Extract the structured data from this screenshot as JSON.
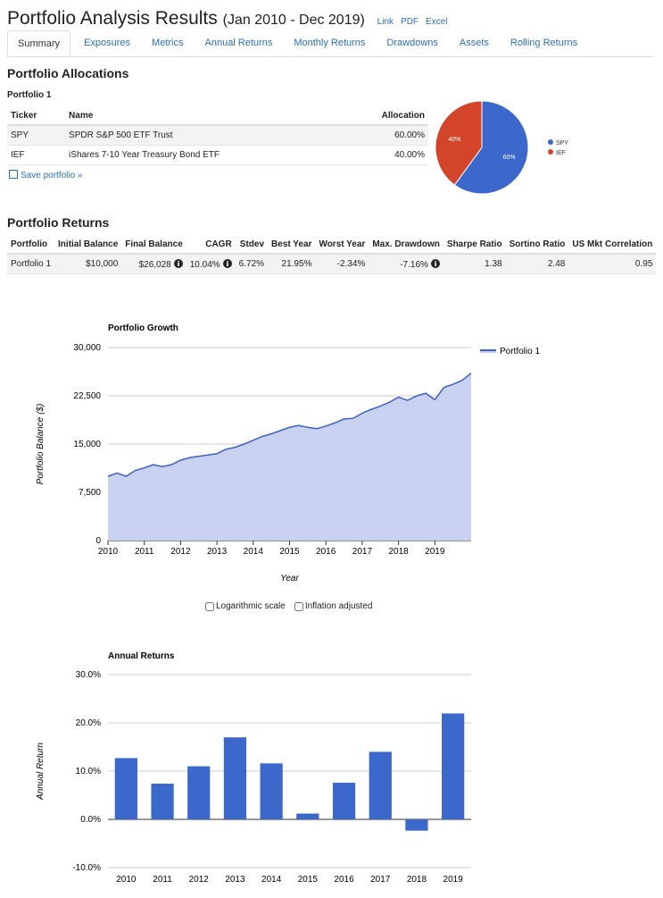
{
  "header": {
    "title": "Portfolio Analysis Results",
    "period": "(Jan 2010 - Dec 2019)",
    "links": [
      "Link",
      "PDF",
      "Excel"
    ]
  },
  "tabs": [
    "Summary",
    "Exposures",
    "Metrics",
    "Annual Returns",
    "Monthly Returns",
    "Drawdowns",
    "Assets",
    "Rolling Returns"
  ],
  "allocations": {
    "title": "Portfolio Allocations",
    "portfolio": "Portfolio 1",
    "columns": [
      "Ticker",
      "Name",
      "Allocation"
    ],
    "rows": [
      [
        "SPY",
        "SPDR S&P 500 ETF Trust",
        "60.00%"
      ],
      [
        "IEF",
        "iShares 7-10 Year Treasury Bond ETF",
        "40.00%"
      ]
    ],
    "save": "Save portfolio »"
  },
  "returns": {
    "title": "Portfolio Returns",
    "columns": [
      "Portfolio",
      "Initial Balance",
      "Final Balance",
      "CAGR",
      "Stdev",
      "Best Year",
      "Worst Year",
      "Max. Drawdown",
      "Sharpe Ratio",
      "Sortino Ratio",
      "US Mkt Correlation"
    ],
    "rows": [
      [
        "Portfolio 1",
        "$10,000",
        "$26,028",
        "10.04%",
        "6.72%",
        "21.95%",
        "-2.34%",
        "-7.16%",
        "1.38",
        "2.48",
        "0.95"
      ]
    ]
  },
  "options": [
    "Logarithmic scale",
    "Inflation adjusted"
  ],
  "chart_data": [
    {
      "type": "pie",
      "categories": [
        "SPY",
        "IEF"
      ],
      "values": [
        60,
        40
      ],
      "value_labels": [
        "60%",
        "40%"
      ],
      "colors": [
        "#3c67cb",
        "#d2452a"
      ],
      "legend": "right"
    },
    {
      "type": "line",
      "title": "Portfolio Growth",
      "x_label": "Year",
      "y_label": "Portfolio Balance ($)",
      "x": [
        2010,
        2010.25,
        2010.5,
        2010.75,
        2011,
        2011.25,
        2011.5,
        2011.75,
        2012,
        2012.25,
        2012.5,
        2012.75,
        2013,
        2013.25,
        2013.5,
        2013.75,
        2014,
        2014.25,
        2014.5,
        2014.75,
        2015,
        2015.25,
        2015.5,
        2015.75,
        2016,
        2016.25,
        2016.5,
        2016.75,
        2017,
        2017.25,
        2017.5,
        2017.75,
        2018,
        2018.25,
        2018.5,
        2018.75,
        2019,
        2019.25,
        2019.5,
        2019.75,
        2020
      ],
      "series": [
        {
          "name": "Portfolio 1",
          "color": "#3d62c4",
          "fill": "#c6d0f0",
          "values": [
            10000,
            10500,
            10000,
            10900,
            11300,
            11800,
            11500,
            11800,
            12500,
            12900,
            13100,
            13300,
            13500,
            14200,
            14500,
            15000,
            15600,
            16200,
            16600,
            17100,
            17600,
            17900,
            17600,
            17400,
            17800,
            18300,
            18900,
            19000,
            19800,
            20400,
            20900,
            21500,
            22300,
            21800,
            22500,
            22900,
            21900,
            23800,
            24300,
            24900,
            26028
          ]
        }
      ],
      "xlim": [
        2010,
        2020
      ],
      "xticks": [
        2010,
        2011,
        2012,
        2013,
        2014,
        2015,
        2016,
        2017,
        2018,
        2019
      ],
      "ylim": [
        0,
        30000
      ],
      "yticks": [
        0,
        {
          "value": 7500,
          "label": "7,500"
        },
        {
          "value": 15000,
          "label": "15,000"
        },
        {
          "value": 22500,
          "label": "22,500"
        },
        {
          "value": 30000,
          "label": "30,000"
        }
      ],
      "grid": true,
      "legend": "top-right"
    },
    {
      "type": "bar",
      "title": "Annual Returns",
      "y_label": "Annual Return",
      "categories": [
        "2010",
        "2011",
        "2012",
        "2013",
        "2014",
        "2015",
        "2016",
        "2017",
        "2018",
        "2019"
      ],
      "values": [
        12.7,
        7.4,
        11.0,
        17.0,
        11.6,
        1.2,
        7.6,
        14.0,
        -2.34,
        21.95
      ],
      "color": "#3c67cb",
      "ylim": [
        -10,
        30
      ],
      "yticks": [
        {
          "value": -10,
          "label": "-10.0%"
        },
        {
          "value": 0,
          "label": "0.0%"
        },
        {
          "value": 10,
          "label": "10.0%"
        },
        {
          "value": 20,
          "label": "20.0%"
        },
        {
          "value": 30,
          "label": "30.0%"
        }
      ],
      "grid": true
    }
  ]
}
